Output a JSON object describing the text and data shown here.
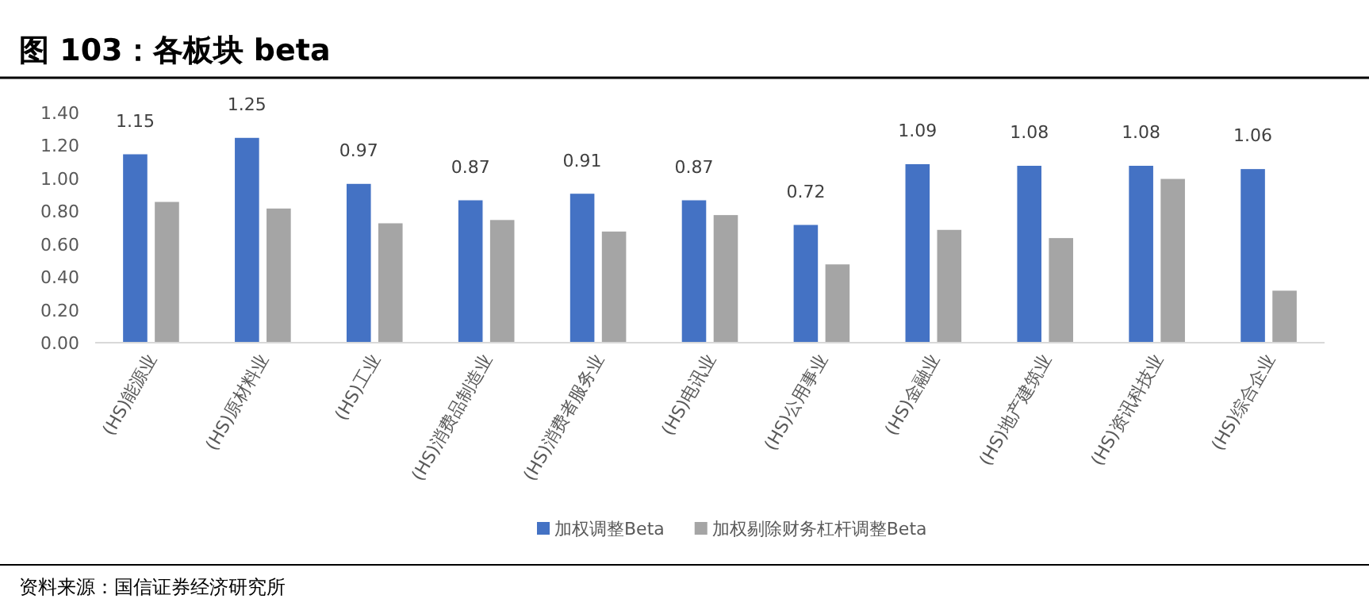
{
  "chart_data": {
    "type": "bar",
    "title": "图 103：各板块 beta",
    "categories": [
      "(HS)能源业",
      "(HS)原材料业",
      "(HS)工业",
      "(HS)消费品制造业",
      "(HS)消费者服务业",
      "(HS)电讯业",
      "(HS)公用事业",
      "(HS)金融业",
      "(HS)地产建筑业",
      "(HS)资讯科技业",
      "(HS)综合企业"
    ],
    "series": [
      {
        "name": "加权调整Beta",
        "color": "#4472c4",
        "values": [
          1.15,
          1.25,
          0.97,
          0.87,
          0.91,
          0.87,
          0.72,
          1.09,
          1.08,
          1.08,
          1.06
        ],
        "value_labels": [
          "1.15",
          "1.25",
          "0.97",
          "0.87",
          "0.91",
          "0.87",
          "0.72",
          "1.09",
          "1.08",
          "1.08",
          "1.06"
        ]
      },
      {
        "name": "加权剔除财务杠杆调整Beta",
        "color": "#a5a5a5",
        "values": [
          0.86,
          0.82,
          0.73,
          0.75,
          0.68,
          0.78,
          0.48,
          0.69,
          0.64,
          1.0,
          0.32
        ]
      }
    ],
    "ylim": [
      0,
      1.4
    ],
    "yticks": [
      {
        "value": 0,
        "label": "0.00"
      },
      {
        "value": 0.2,
        "label": "0.20"
      },
      {
        "value": 0.4,
        "label": "0.40"
      },
      {
        "value": 0.6,
        "label": "0.60"
      },
      {
        "value": 0.8,
        "label": "0.80"
      },
      {
        "value": 1.0,
        "label": "1.00"
      },
      {
        "value": 1.2,
        "label": "1.20"
      },
      {
        "value": 1.4,
        "label": "1.40"
      }
    ],
    "legend": "bottom",
    "annotations": [
      "资料来源：国信证券经济研究所"
    ]
  }
}
